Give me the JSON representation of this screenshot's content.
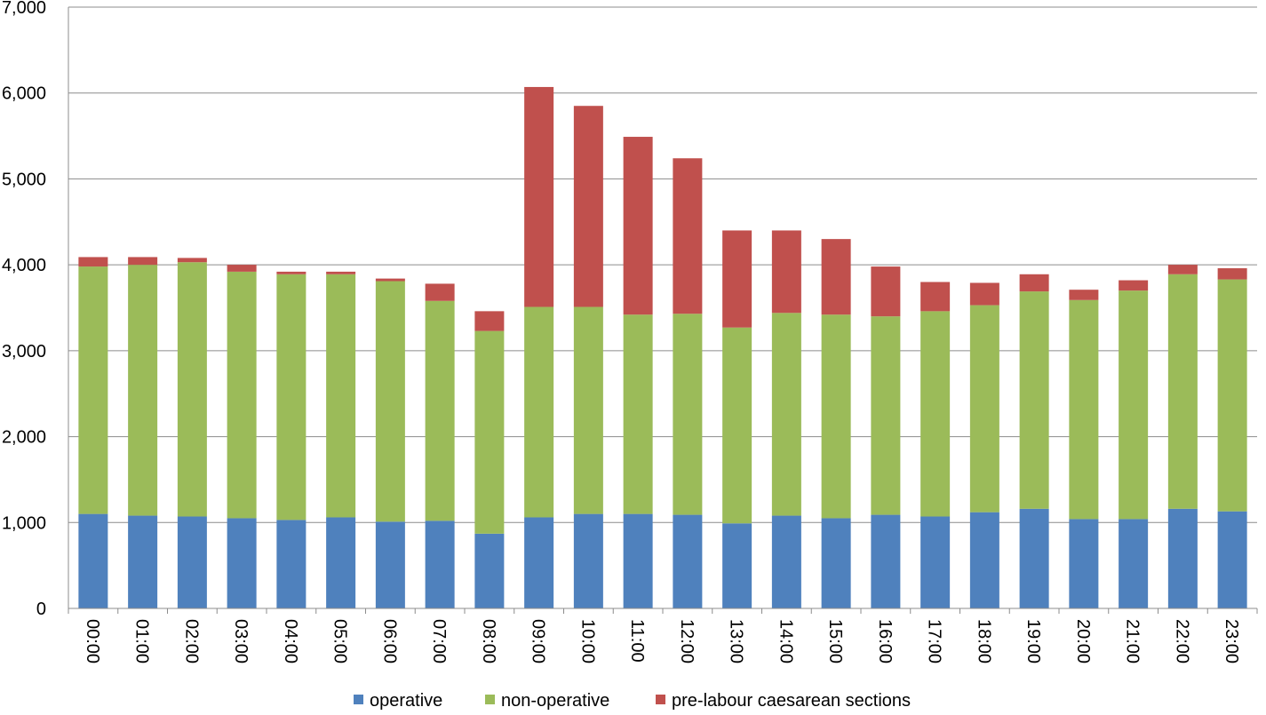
{
  "chart_data": {
    "type": "bar",
    "stacked": true,
    "title": "",
    "xlabel": "",
    "ylabel": "",
    "ylim": [
      0,
      7000
    ],
    "yticks": [
      0,
      1000,
      2000,
      3000,
      4000,
      5000,
      6000,
      7000
    ],
    "ytick_labels": [
      "0",
      "1,000",
      "2,000",
      "3,000",
      "4,000",
      "5,000",
      "6,000",
      "7,000"
    ],
    "grid": true,
    "legend_position": "bottom",
    "categories": [
      "00:00",
      "01:00",
      "02:00",
      "03:00",
      "04:00",
      "05:00",
      "06:00",
      "07:00",
      "08:00",
      "09:00",
      "10:00",
      "11:00",
      "12:00",
      "13:00",
      "14:00",
      "15:00",
      "16:00",
      "17:00",
      "18:00",
      "19:00",
      "20:00",
      "21:00",
      "22:00",
      "23:00"
    ],
    "series": [
      {
        "name": "operative",
        "color": "#4F81BD",
        "values": [
          1100,
          1080,
          1070,
          1050,
          1030,
          1060,
          1010,
          1020,
          870,
          1060,
          1100,
          1100,
          1090,
          990,
          1080,
          1050,
          1090,
          1070,
          1120,
          1160,
          1040,
          1040,
          1160,
          1130
        ]
      },
      {
        "name": "non-operative",
        "color": "#9BBB59",
        "values": [
          2880,
          2920,
          2960,
          2870,
          2860,
          2830,
          2800,
          2560,
          2360,
          2450,
          2410,
          2320,
          2340,
          2280,
          2360,
          2370,
          2310,
          2390,
          2410,
          2530,
          2550,
          2660,
          2730,
          2700
        ]
      },
      {
        "name": "pre-labour caesarean sections",
        "color": "#C0504D",
        "values": [
          110,
          90,
          50,
          80,
          30,
          30,
          30,
          200,
          230,
          2560,
          2340,
          2070,
          1810,
          1130,
          960,
          880,
          580,
          340,
          260,
          200,
          120,
          120,
          110,
          130
        ]
      }
    ]
  }
}
